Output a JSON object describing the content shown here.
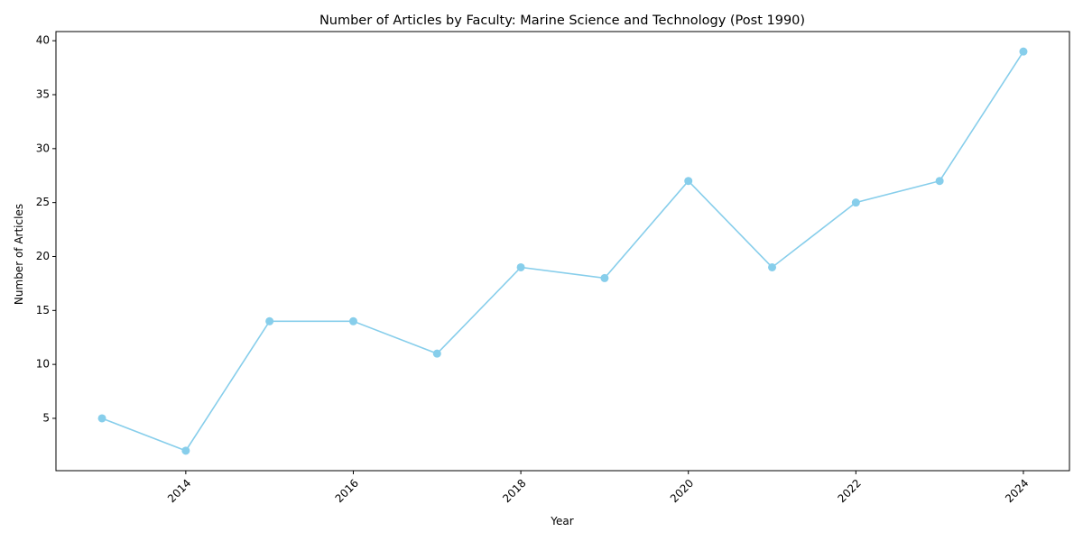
{
  "chart_data": {
    "type": "line",
    "title": "Number of Articles by Faculty: Marine Science and Technology (Post 1990)",
    "xlabel": "Year",
    "ylabel": "Number of Articles",
    "xlim": [
      2012.45,
      2024.55
    ],
    "ylim": [
      0.15,
      40.85
    ],
    "xticks": [
      2014,
      2016,
      2018,
      2020,
      2022,
      2024
    ],
    "yticks": [
      5,
      10,
      15,
      20,
      25,
      30,
      35,
      40
    ],
    "xtick_rotation_deg": 45,
    "grid": false,
    "legend": "none",
    "series": [
      {
        "color": "#87CEEB",
        "marker": "circle",
        "x": [
          2013,
          2014,
          2015,
          2016,
          2017,
          2018,
          2019,
          2020,
          2021,
          2022,
          2023,
          2024
        ],
        "values": [
          5,
          2,
          14,
          14,
          11,
          19,
          18,
          27,
          19,
          25,
          27,
          39
        ]
      }
    ]
  }
}
